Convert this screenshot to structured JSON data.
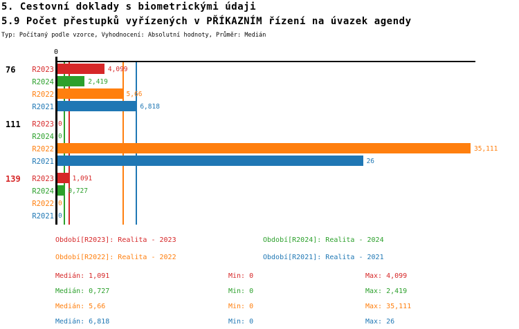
{
  "header": {
    "title1": "5. Cestovní doklady s biometrickými údaji",
    "title2": "5.9 Počet přestupků vyřízených v PŘÍKAZNÍM řízení na úvazek agendy",
    "subtitle": "Typ: Počítaný podle vzorce, Vyhodnocení: Absolutní hodnoty, Průměr: Medián"
  },
  "colors": {
    "R2023": "#d62728",
    "R2024": "#2ca02c",
    "R2022": "#ff7f0e",
    "R2021": "#1f77b4",
    "axis": "#000000",
    "group_label": "#000000",
    "highlighted_group_label": "#d62728"
  },
  "chart_data": {
    "type": "bar",
    "orientation": "horizontal",
    "value_axis": {
      "tick_label": "0",
      "min": 0,
      "max": 35.111
    },
    "grid": "off",
    "series_order": [
      "R2023",
      "R2024",
      "R2022",
      "R2021"
    ],
    "groups": [
      {
        "label": "76",
        "highlighted": false,
        "rows": [
          {
            "series": "R2023",
            "value": 4.099,
            "value_label": "4,099"
          },
          {
            "series": "R2024",
            "value": 2.419,
            "value_label": "2,419"
          },
          {
            "series": "R2022",
            "value": 5.66,
            "value_label": "5,66"
          },
          {
            "series": "R2021",
            "value": 6.818,
            "value_label": "6,818"
          }
        ]
      },
      {
        "label": "111",
        "highlighted": false,
        "rows": [
          {
            "series": "R2023",
            "value": 0,
            "value_label": "0"
          },
          {
            "series": "R2024",
            "value": 0,
            "value_label": "0"
          },
          {
            "series": "R2022",
            "value": 35.111,
            "value_label": "35,111"
          },
          {
            "series": "R2021",
            "value": 26,
            "value_label": "26"
          }
        ]
      },
      {
        "label": "139",
        "highlighted": true,
        "rows": [
          {
            "series": "R2023",
            "value": 1.091,
            "value_label": "1,091"
          },
          {
            "series": "R2024",
            "value": 0.727,
            "value_label": "0,727"
          },
          {
            "series": "R2022",
            "value": 0,
            "value_label": "0"
          },
          {
            "series": "R2021",
            "value": 0,
            "value_label": "0"
          }
        ]
      }
    ],
    "median_lines": [
      {
        "series": "R2023",
        "value": 1.091
      },
      {
        "series": "R2024",
        "value": 0.727
      },
      {
        "series": "R2022",
        "value": 5.66
      },
      {
        "series": "R2021",
        "value": 6.818
      }
    ]
  },
  "legend": {
    "items": [
      {
        "series": "R2023",
        "text": "Období[R2023]: Realita - 2023"
      },
      {
        "series": "R2024",
        "text": "Období[R2024]: Realita - 2024"
      },
      {
        "series": "R2022",
        "text": "Období[R2022]: Realita - 2022"
      },
      {
        "series": "R2021",
        "text": "Období[R2021]: Realita - 2021"
      }
    ]
  },
  "stats": {
    "rows": [
      {
        "series": "R2023",
        "median_label": "Medián: 1,091",
        "min_label": "Min: 0",
        "max_label": "Max: 4,099"
      },
      {
        "series": "R2024",
        "median_label": "Medián: 0,727",
        "min_label": "Min: 0",
        "max_label": "Max: 2,419"
      },
      {
        "series": "R2022",
        "median_label": "Medián: 5,66",
        "min_label": "Min: 0",
        "max_label": "Max: 35,111"
      },
      {
        "series": "R2021",
        "median_label": "Medián: 6,818",
        "min_label": "Min: 0",
        "max_label": "Max: 26"
      }
    ]
  }
}
